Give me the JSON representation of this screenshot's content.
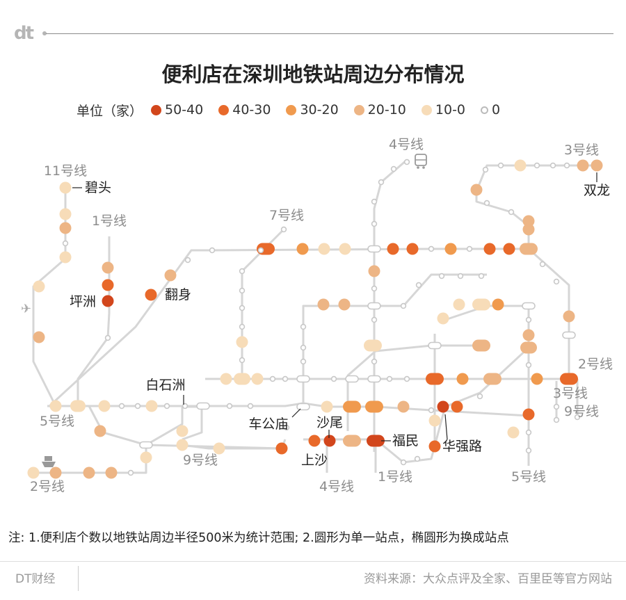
{
  "brand": {
    "logo": "dt"
  },
  "title": "便利店在深圳地铁站周边分布情况",
  "legend": {
    "label": "单位（家）",
    "items": [
      {
        "label": "50-40",
        "color": "#d2461c"
      },
      {
        "label": "40-30",
        "color": "#e8692a"
      },
      {
        "label": "30-20",
        "color": "#f09a4e"
      },
      {
        "label": "20-10",
        "color": "#edb585"
      },
      {
        "label": "10-0",
        "color": "#f7dcb8"
      },
      {
        "label": "0",
        "color": "#ffffff"
      }
    ]
  },
  "colors": {
    "line": "#d6d6d6",
    "line_label": "#8c8c8c",
    "station_label": "#222222"
  },
  "line_labels": [
    "11号线",
    "1号线",
    "7号线",
    "4号线",
    "3号线",
    "2号线",
    "5号线",
    "9号线",
    "9号线",
    "2号线",
    "3号线",
    "4号线",
    "1号线",
    "5号线"
  ],
  "station_labels": [
    "碧头",
    "坪洲",
    "翻身",
    "白石洲",
    "车公庙",
    "沙尾",
    "上沙",
    "福民",
    "华强路",
    "双龙"
  ],
  "icons": [
    "airport-icon",
    "bus-icon",
    "ferry-icon"
  ],
  "footnote": "注: 1.便利店个数以地铁站周边半径500米为统计范围; 2.圆形为单一站点，椭圆形为换成站点",
  "footer": {
    "brand": "DT财经",
    "source": "资料来源：大众点评及全家、百里臣等官方网站"
  }
}
